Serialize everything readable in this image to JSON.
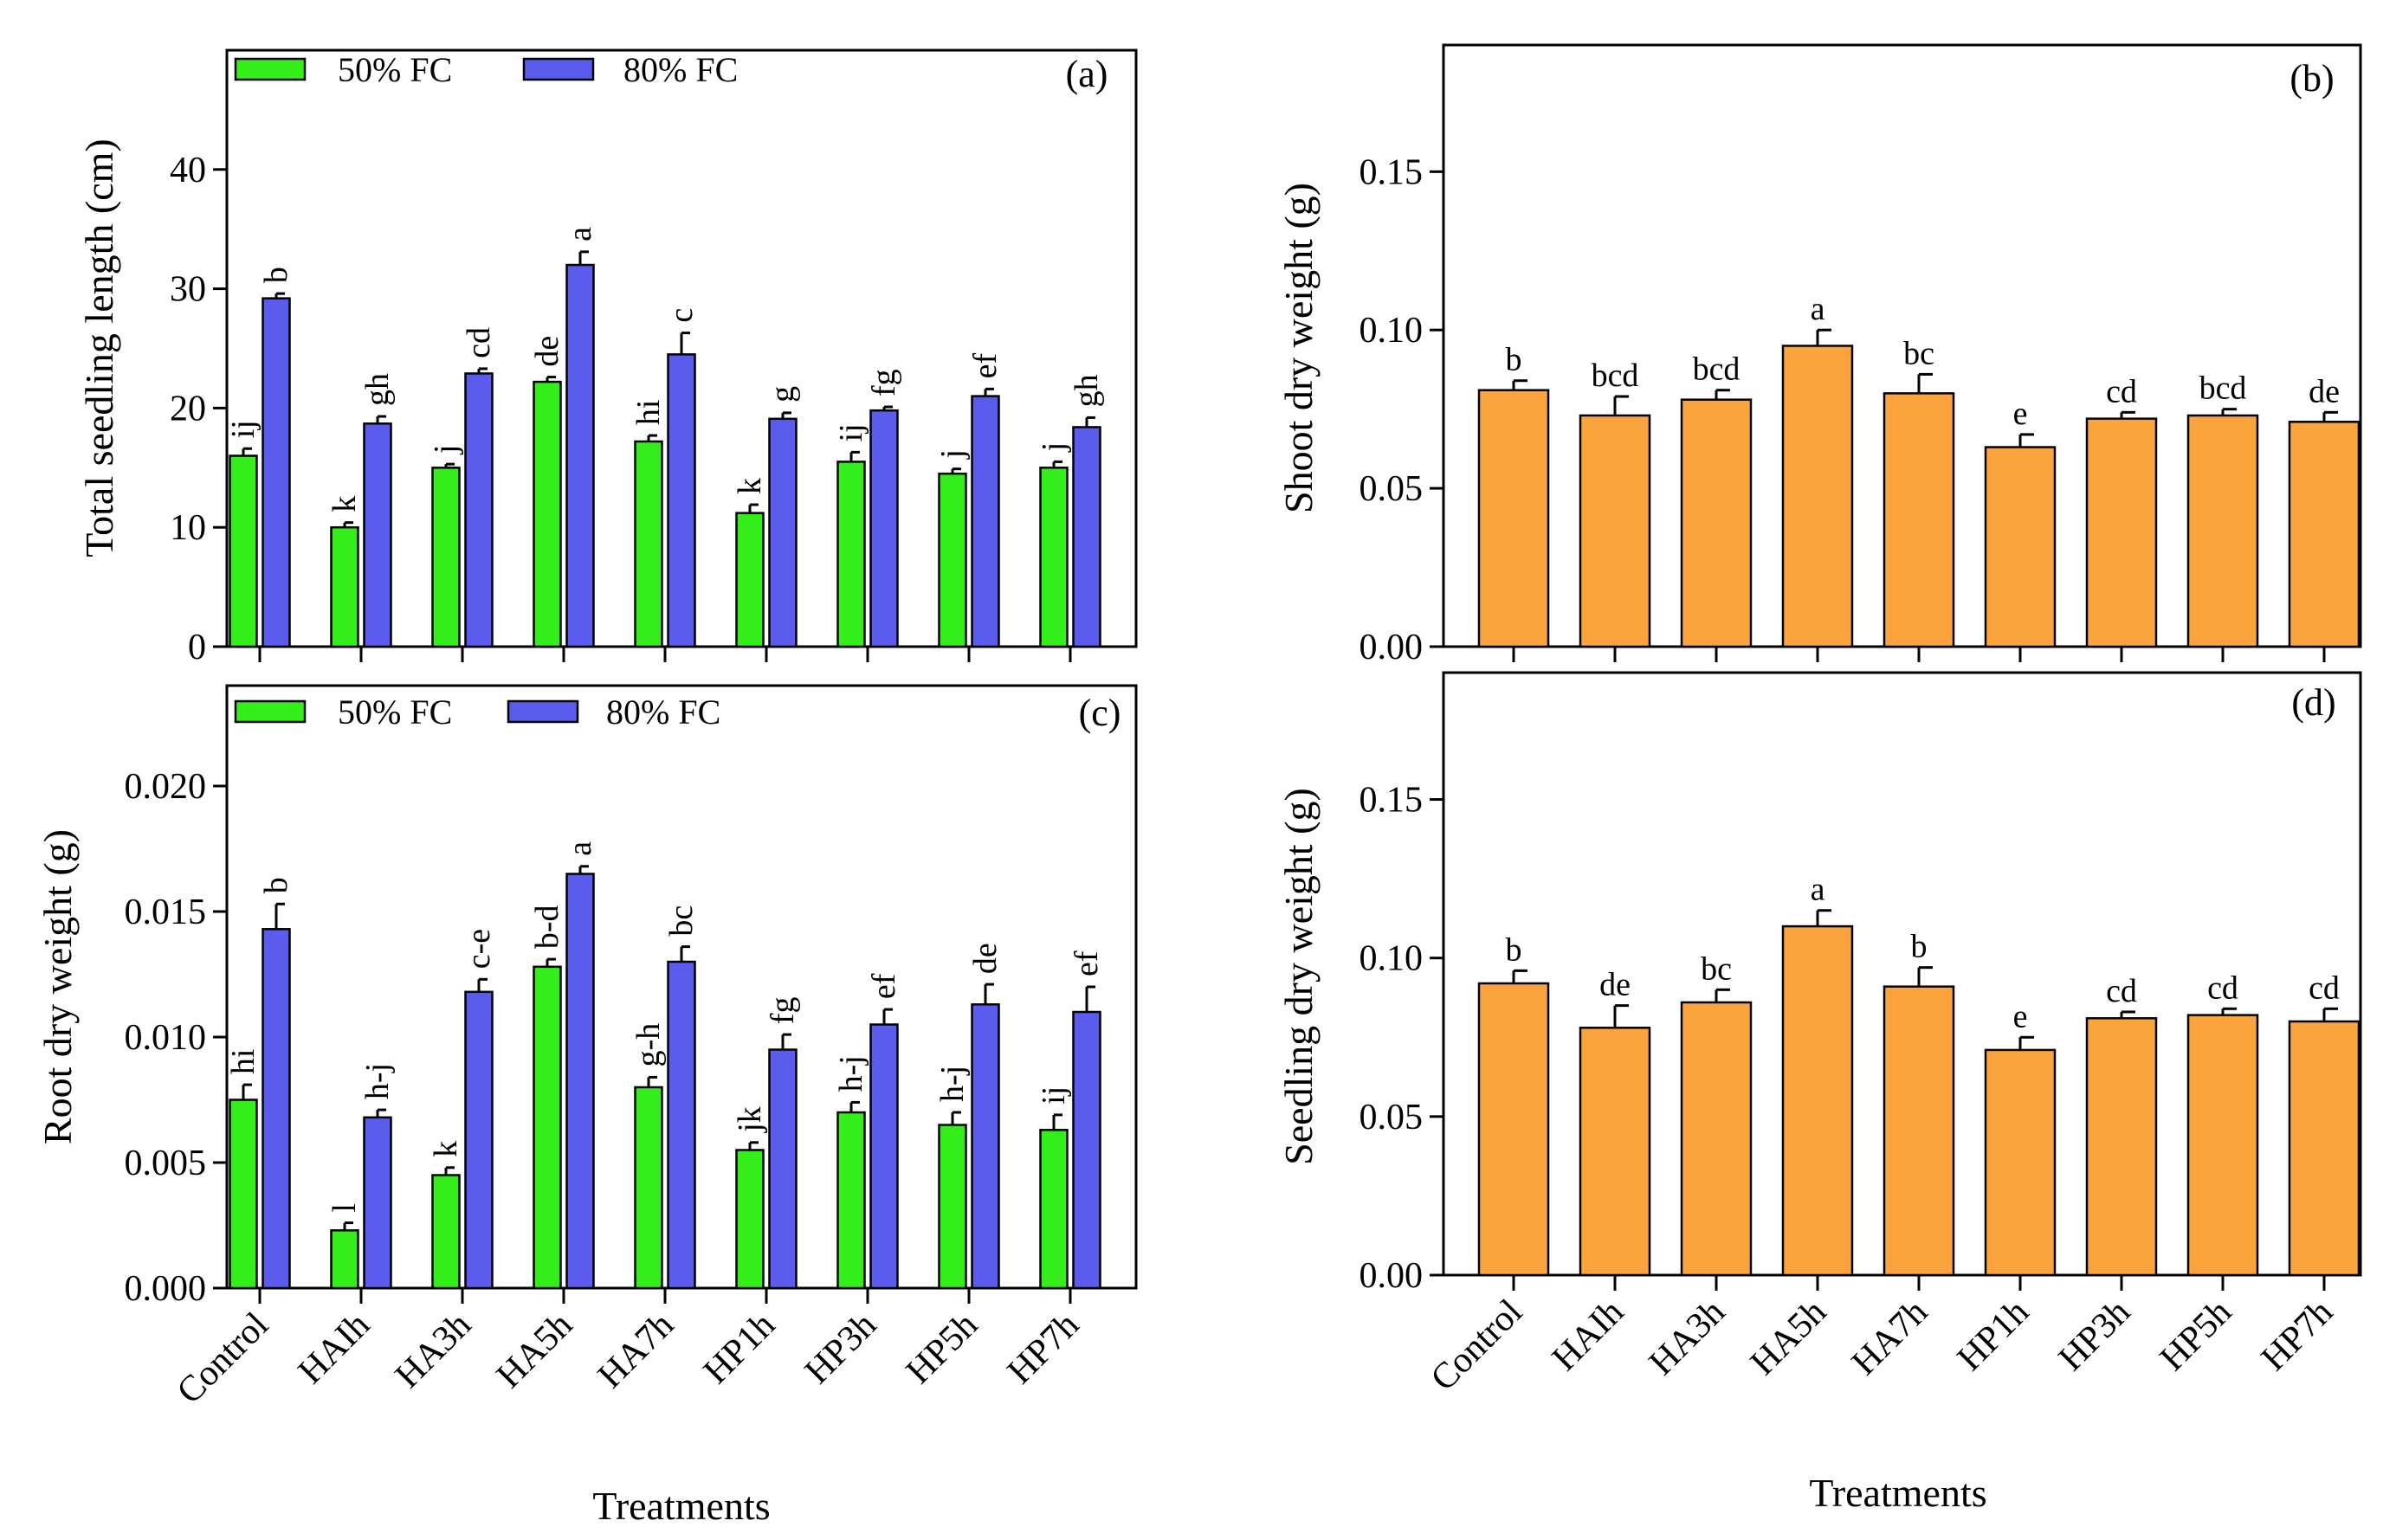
{
  "figure": {
    "xlabel_left": "Treatments",
    "xlabel_right": "Treatments"
  },
  "colors": {
    "fc50": "#33ee1a",
    "fc80": "#5b5bee",
    "single": "#fba33d"
  },
  "chart_data": [
    {
      "id": "a",
      "type": "bar",
      "panel_label": "(a)",
      "title": "",
      "xlabel": "",
      "ylabel": "Total seedling length (cm)",
      "ylim": [
        0,
        50
      ],
      "yticks": [
        0,
        10,
        20,
        30,
        40
      ],
      "tick_labels": [
        "0",
        "10",
        "20",
        "30",
        "40"
      ],
      "legend_position": "top-left",
      "categories": [
        "Control",
        "HAIh",
        "HA3h",
        "HA5h",
        "HA7h",
        "HP1h",
        "HP3h",
        "HP5h",
        "HP7h"
      ],
      "series": [
        {
          "name": "50% FC",
          "values": [
            16,
            10,
            15,
            22.2,
            17.2,
            11.2,
            15.5,
            14.5,
            15
          ],
          "errors": [
            0.6,
            0.4,
            0.3,
            0.4,
            0.5,
            0.7,
            0.8,
            0.4,
            0.5
          ],
          "letters": [
            "ij",
            "k",
            "j",
            "de",
            "hi",
            "k",
            "ij",
            "j",
            "j"
          ]
        },
        {
          "name": "80% FC",
          "values": [
            29.2,
            18.7,
            22.9,
            32,
            24.5,
            19.1,
            19.8,
            21,
            18.4
          ],
          "errors": [
            0.4,
            0.6,
            0.4,
            1.1,
            1.8,
            0.5,
            0.3,
            0.6,
            0.8
          ],
          "letters": [
            "b",
            "gh",
            "cd",
            "a",
            "c",
            "g",
            "fg",
            "ef",
            "gh"
          ]
        }
      ]
    },
    {
      "id": "b",
      "type": "bar",
      "panel_label": "(b)",
      "title": "",
      "xlabel": "",
      "ylabel": "Shoot dry weight (g)",
      "ylim": [
        0,
        0.19
      ],
      "yticks": [
        0,
        0.05,
        0.1,
        0.15
      ],
      "tick_labels": [
        "0.00",
        "0.05",
        "0.10",
        "0.15"
      ],
      "categories": [
        "Control",
        "HAIh",
        "HA3h",
        "HA5h",
        "HA7h",
        "HP1h",
        "HP3h",
        "HP5h",
        "HP7h"
      ],
      "series": [
        {
          "name": "Shoot dry weight",
          "values": [
            0.081,
            0.073,
            0.078,
            0.095,
            0.08,
            0.063,
            0.072,
            0.073,
            0.071
          ],
          "errors": [
            0.003,
            0.006,
            0.003,
            0.005,
            0.006,
            0.004,
            0.002,
            0.002,
            0.003
          ],
          "letters": [
            "b",
            "bcd",
            "bcd",
            "a",
            "bc",
            "e",
            "cd",
            "bcd",
            "de"
          ]
        }
      ]
    },
    {
      "id": "c",
      "type": "bar",
      "panel_label": "(c)",
      "title": "",
      "xlabel": "",
      "ylabel": "Root dry weight (g)",
      "ylim": [
        0,
        0.024
      ],
      "yticks": [
        0,
        0.005,
        0.01,
        0.015,
        0.02
      ],
      "tick_labels": [
        "0.000",
        "0.005",
        "0.010",
        "0.015",
        "0.020"
      ],
      "legend_position": "top-left",
      "categories": [
        "Control",
        "HAIh",
        "HA3h",
        "HA5h",
        "HA7h",
        "HP1h",
        "HP3h",
        "HP5h",
        "HP7h"
      ],
      "series": [
        {
          "name": "50% FC",
          "values": [
            0.0075,
            0.0023,
            0.0045,
            0.0128,
            0.008,
            0.0055,
            0.007,
            0.0065,
            0.0063
          ],
          "errors": [
            0.0006,
            0.0003,
            0.0003,
            0.0003,
            0.0004,
            0.0003,
            0.0004,
            0.0005,
            0.0006
          ],
          "letters": [
            "hi",
            "l",
            "k",
            "b-d",
            "g-h",
            "jk",
            "h-j",
            "h-j",
            "ij"
          ]
        },
        {
          "name": "80% FC",
          "values": [
            0.0143,
            0.0068,
            0.0118,
            0.0165,
            0.013,
            0.0095,
            0.0105,
            0.0113,
            0.011
          ],
          "errors": [
            0.001,
            0.0003,
            0.0005,
            0.0003,
            0.0006,
            0.0006,
            0.0006,
            0.0008,
            0.001
          ],
          "letters": [
            "b",
            "h-j",
            "c-e",
            "a",
            "bc",
            "fg",
            "ef",
            "de",
            "ef"
          ]
        }
      ]
    },
    {
      "id": "d",
      "type": "bar",
      "panel_label": "(d)",
      "title": "",
      "xlabel": "Treatments",
      "ylabel": "Seedling dry weight (g)",
      "ylim": [
        0,
        0.19
      ],
      "yticks": [
        0,
        0.05,
        0.1,
        0.15
      ],
      "tick_labels": [
        "0.00",
        "0.05",
        "0.10",
        "0.15"
      ],
      "categories": [
        "Control",
        "HAIh",
        "HA3h",
        "HA5h",
        "HA7h",
        "HP1h",
        "HP3h",
        "HP5h",
        "HP7h"
      ],
      "series": [
        {
          "name": "Seedling dry weight",
          "values": [
            0.092,
            0.078,
            0.086,
            0.11,
            0.091,
            0.071,
            0.081,
            0.082,
            0.08
          ],
          "errors": [
            0.004,
            0.007,
            0.004,
            0.005,
            0.006,
            0.004,
            0.002,
            0.002,
            0.004
          ],
          "letters": [
            "b",
            "de",
            "bc",
            "a",
            "b",
            "e",
            "cd",
            "cd",
            "cd"
          ]
        }
      ]
    }
  ]
}
